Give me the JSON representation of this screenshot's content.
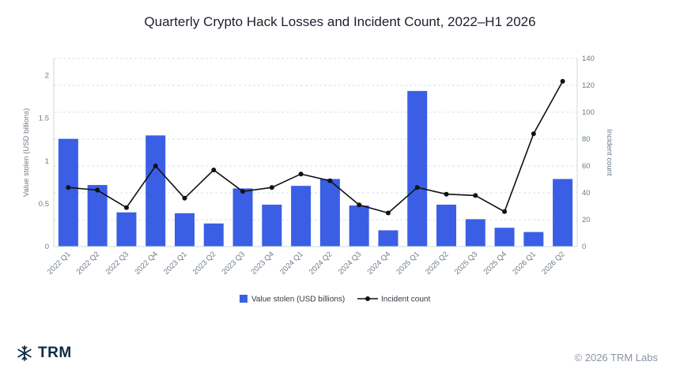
{
  "chart_data": {
    "type": "bar",
    "title": "Quarterly Crypto Hack Losses and Incident Count, 2022–H1 2026",
    "categories": [
      "2022 Q1",
      "2022 Q2",
      "2022 Q3",
      "2022 Q4",
      "2023 Q1",
      "2023 Q2",
      "2023 Q3",
      "2023 Q4",
      "2024 Q1",
      "2024 Q2",
      "2024 Q3",
      "2024 Q4",
      "2025 Q1",
      "2025 Q2",
      "2025 Q3",
      "2025 Q4",
      "2026 Q1",
      "2026 Q2"
    ],
    "series": [
      {
        "name": "Value stolen (USD billions)",
        "type": "bar",
        "axis": "left",
        "color": "#3a5fe5",
        "values": [
          1.26,
          0.72,
          0.4,
          1.3,
          0.39,
          0.27,
          0.68,
          0.49,
          0.71,
          0.79,
          0.48,
          0.19,
          1.82,
          0.49,
          0.32,
          0.22,
          0.17,
          0.79
        ]
      },
      {
        "name": "Incident count",
        "type": "line",
        "axis": "right",
        "color": "#111111",
        "values": [
          44,
          42,
          29,
          60,
          36,
          57,
          41,
          44,
          54,
          49,
          31,
          25,
          44,
          39,
          38,
          26,
          84,
          123
        ]
      }
    ],
    "ylabel": "Value stolen (USD billions)",
    "ylim": [
      0,
      2.2
    ],
    "yticks": [
      0,
      0.5,
      1,
      1.5,
      2
    ],
    "ylabel_right": "Incident count",
    "ylim_right": [
      0,
      140
    ],
    "yticks_right": [
      0,
      20,
      40,
      60,
      80,
      100,
      120,
      140
    ],
    "grid": true,
    "legend_position": "bottom-center"
  },
  "branding": {
    "logo_text": "TRM",
    "logo_icon": "snowflake-icon",
    "copyright": "© 2026 TRM Labs"
  }
}
